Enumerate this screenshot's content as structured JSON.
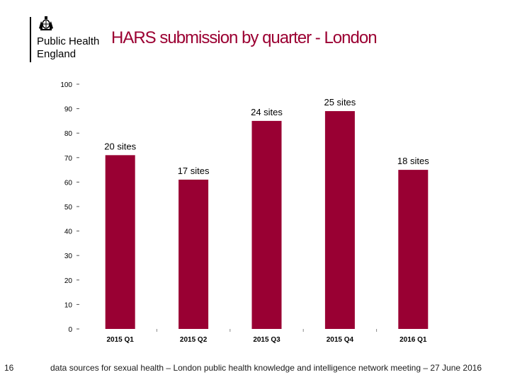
{
  "logo": {
    "line1": "Public Health",
    "line2": "England",
    "crest_icon": "royal-coat-of-arms-icon"
  },
  "title": "HARS submission by quarter - London",
  "chart_data": {
    "type": "bar",
    "categories": [
      "2015 Q1",
      "2015 Q2",
      "2015 Q3",
      "2015 Q4",
      "2016 Q1"
    ],
    "values": [
      71,
      61,
      85,
      89,
      65
    ],
    "data_labels": [
      "20 sites",
      "17 sites",
      "24 sites",
      "25 sites",
      "18 sites"
    ],
    "ylim": [
      0,
      100
    ],
    "yticks": [
      0,
      10,
      20,
      30,
      40,
      50,
      60,
      70,
      80,
      90,
      100
    ],
    "bar_color": "#990033",
    "grid": false,
    "title": "",
    "xlabel": "",
    "ylabel": ""
  },
  "footer": {
    "page_number": "16",
    "source": "data sources for sexual health – London public health knowledge and intelligence network meeting – 27 June 2016"
  },
  "colors": {
    "title": "#9b0032",
    "bar": "#990033"
  }
}
